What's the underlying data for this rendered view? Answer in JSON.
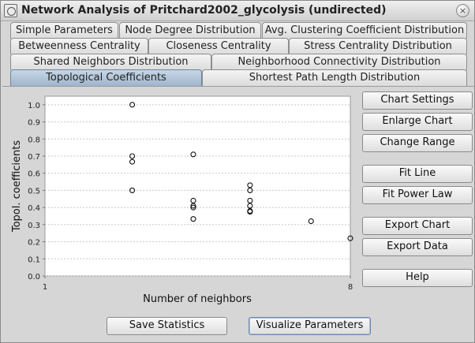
{
  "window": {
    "title": "Network Analysis of Pritchard2002_glycolysis (undirected)",
    "close_glyph": "×"
  },
  "tabs": [
    {
      "label": "Simple Parameters"
    },
    {
      "label": "Node Degree Distribution"
    },
    {
      "label": "Avg. Clustering Coefficient Distribution"
    },
    {
      "label": "Betweenness Centrality"
    },
    {
      "label": "Closeness Centrality"
    },
    {
      "label": "Stress Centrality Distribution"
    },
    {
      "label": "Shared Neighbors Distribution"
    },
    {
      "label": "Neighborhood Connectivity Distribution"
    },
    {
      "label": "Topological Coefficients",
      "selected": true
    },
    {
      "label": "Shortest Path Length Distribution"
    }
  ],
  "side_buttons": {
    "chart_settings": "Chart Settings",
    "enlarge_chart": "Enlarge Chart",
    "change_range": "Change Range",
    "fit_line": "Fit Line",
    "fit_power_law": "Fit Power Law",
    "export_chart": "Export Chart",
    "export_data": "Export Data",
    "help": "Help"
  },
  "bottom_buttons": {
    "save_statistics": "Save Statistics",
    "visualize_parameters": "Visualize Parameters"
  },
  "chart_data": {
    "type": "scatter",
    "xlabel": "Number of neighbors",
    "ylabel": "Topol. coefficients",
    "xlim": [
      1,
      8
    ],
    "ylim": [
      0.0,
      1.05
    ],
    "x_ticks": [
      1,
      8
    ],
    "y_ticks": [
      0.0,
      0.1,
      0.2,
      0.3,
      0.4,
      0.5,
      0.6,
      0.7,
      0.8,
      0.9,
      1.0
    ],
    "y_tick_labels": [
      "0.0",
      "0.1",
      "0.2",
      "0.3",
      "0.4",
      "0.5",
      "0.6",
      "0.7",
      "0.8",
      "0.9",
      "1.0"
    ],
    "x_tick_labels": [
      "1",
      "8"
    ],
    "grid": "horizontal",
    "points": [
      {
        "x": 3,
        "y": 1.0
      },
      {
        "x": 3,
        "y": 0.7
      },
      {
        "x": 3,
        "y": 0.667
      },
      {
        "x": 3,
        "y": 0.5
      },
      {
        "x": 4.4,
        "y": 0.71
      },
      {
        "x": 4.4,
        "y": 0.44
      },
      {
        "x": 4.4,
        "y": 0.41
      },
      {
        "x": 4.4,
        "y": 0.4
      },
      {
        "x": 4.4,
        "y": 0.333
      },
      {
        "x": 5.7,
        "y": 0.53
      },
      {
        "x": 5.7,
        "y": 0.5
      },
      {
        "x": 5.7,
        "y": 0.44
      },
      {
        "x": 5.7,
        "y": 0.41
      },
      {
        "x": 5.7,
        "y": 0.38
      },
      {
        "x": 5.7,
        "y": 0.375
      },
      {
        "x": 7.1,
        "y": 0.32
      },
      {
        "x": 8,
        "y": 0.22
      }
    ]
  }
}
